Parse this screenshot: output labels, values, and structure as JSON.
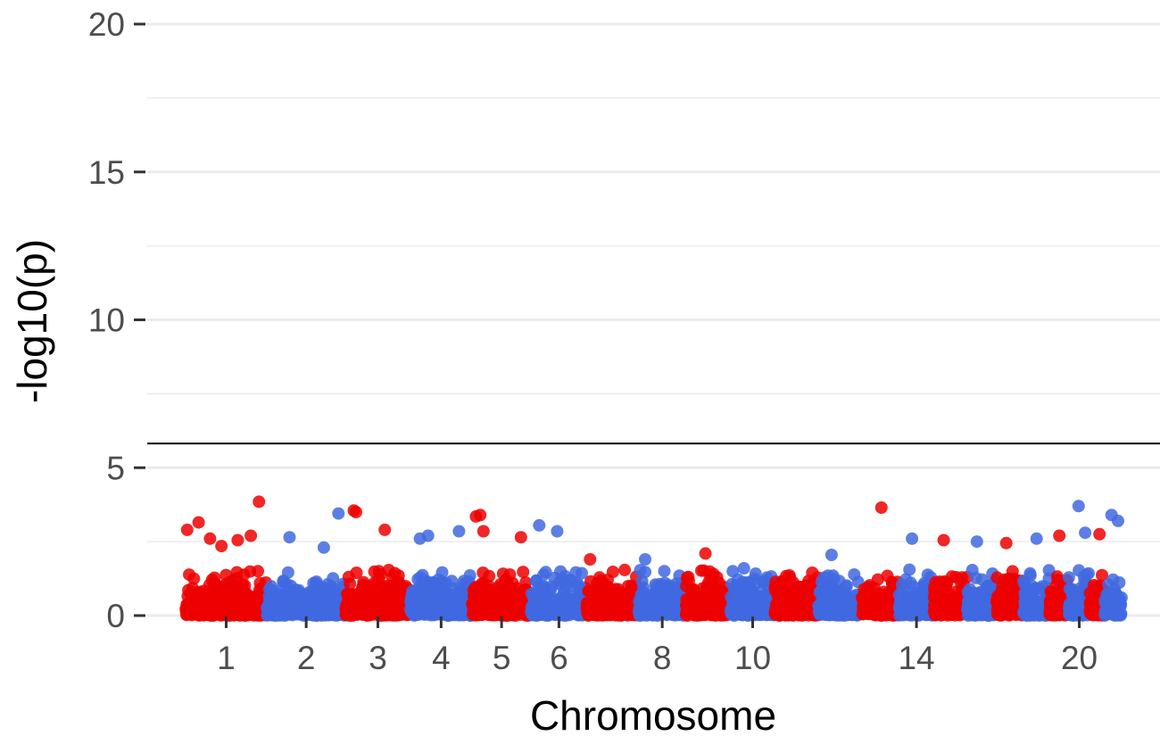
{
  "chart_data": {
    "type": "scatter",
    "title": "",
    "xlabel": "Chromosome",
    "ylabel": "-log10(p)",
    "ylim": [
      0,
      20
    ],
    "y_ticks": [
      0,
      5,
      10,
      15,
      20
    ],
    "significance_line": 5.82,
    "grid": true,
    "legend": "none",
    "colors": {
      "odd": "#ee0000",
      "even": "#4169e1",
      "threshold": "#000000"
    },
    "x_tick_labels": [
      "1",
      "2",
      "3",
      "4",
      "5",
      "6",
      "8",
      "10",
      "14",
      "20"
    ],
    "chromosomes": [
      {
        "chr": 1,
        "size": 249
      },
      {
        "chr": 2,
        "size": 242
      },
      {
        "chr": 3,
        "size": 198
      },
      {
        "chr": 4,
        "size": 190
      },
      {
        "chr": 5,
        "size": 181
      },
      {
        "chr": 6,
        "size": 171
      },
      {
        "chr": 7,
        "size": 159
      },
      {
        "chr": 8,
        "size": 145
      },
      {
        "chr": 9,
        "size": 138
      },
      {
        "chr": 10,
        "size": 134
      },
      {
        "chr": 11,
        "size": 135
      },
      {
        "chr": 12,
        "size": 133
      },
      {
        "chr": 13,
        "size": 114
      },
      {
        "chr": 14,
        "size": 107
      },
      {
        "chr": 15,
        "size": 102
      },
      {
        "chr": 16,
        "size": 90
      },
      {
        "chr": 17,
        "size": 83
      },
      {
        "chr": 18,
        "size": 80
      },
      {
        "chr": 19,
        "size": 59
      },
      {
        "chr": 20,
        "size": 64
      },
      {
        "chr": 21,
        "size": 47
      },
      {
        "chr": 22,
        "size": 51
      }
    ],
    "top_hits": [
      {
        "chr": 1,
        "pos": 5,
        "p": 2.9
      },
      {
        "chr": 1,
        "pos": 40,
        "p": 3.15
      },
      {
        "chr": 1,
        "pos": 75,
        "p": 2.6
      },
      {
        "chr": 1,
        "pos": 110,
        "p": 2.35
      },
      {
        "chr": 1,
        "pos": 160,
        "p": 2.55
      },
      {
        "chr": 1,
        "pos": 200,
        "p": 2.7
      },
      {
        "chr": 1,
        "pos": 225,
        "p": 3.85
      },
      {
        "chr": 2,
        "pos": 70,
        "p": 2.65
      },
      {
        "chr": 2,
        "pos": 175,
        "p": 2.3
      },
      {
        "chr": 2,
        "pos": 220,
        "p": 3.45
      },
      {
        "chr": 3,
        "pos": 25,
        "p": 3.55
      },
      {
        "chr": 3,
        "pos": 32,
        "p": 3.5
      },
      {
        "chr": 3,
        "pos": 120,
        "p": 2.9
      },
      {
        "chr": 4,
        "pos": 30,
        "p": 2.6
      },
      {
        "chr": 4,
        "pos": 55,
        "p": 2.7
      },
      {
        "chr": 4,
        "pos": 150,
        "p": 2.85
      },
      {
        "chr": 5,
        "pos": 12,
        "p": 3.35
      },
      {
        "chr": 5,
        "pos": 25,
        "p": 3.4
      },
      {
        "chr": 5,
        "pos": 35,
        "p": 2.85
      },
      {
        "chr": 5,
        "pos": 150,
        "p": 2.65
      },
      {
        "chr": 6,
        "pos": 25,
        "p": 3.05
      },
      {
        "chr": 6,
        "pos": 80,
        "p": 2.85
      },
      {
        "chr": 7,
        "pos": 10,
        "p": 1.9
      },
      {
        "chr": 8,
        "pos": 20,
        "p": 1.9
      },
      {
        "chr": 9,
        "pos": 60,
        "p": 2.1
      },
      {
        "chr": 10,
        "pos": 40,
        "p": 1.6
      },
      {
        "chr": 12,
        "pos": 40,
        "p": 2.05
      },
      {
        "chr": 13,
        "pos": 60,
        "p": 3.65
      },
      {
        "chr": 14,
        "pos": 40,
        "p": 2.6
      },
      {
        "chr": 15,
        "pos": 30,
        "p": 2.55
      },
      {
        "chr": 16,
        "pos": 30,
        "p": 2.5
      },
      {
        "chr": 17,
        "pos": 30,
        "p": 2.45
      },
      {
        "chr": 18,
        "pos": 40,
        "p": 2.6
      },
      {
        "chr": 19,
        "pos": 30,
        "p": 2.7
      },
      {
        "chr": 20,
        "pos": 30,
        "p": 3.7
      },
      {
        "chr": 20,
        "pos": 50,
        "p": 2.8
      },
      {
        "chr": 21,
        "pos": 30,
        "p": 2.75
      },
      {
        "chr": 22,
        "pos": 20,
        "p": 3.4
      },
      {
        "chr": 22,
        "pos": 40,
        "p": 3.2
      }
    ]
  }
}
